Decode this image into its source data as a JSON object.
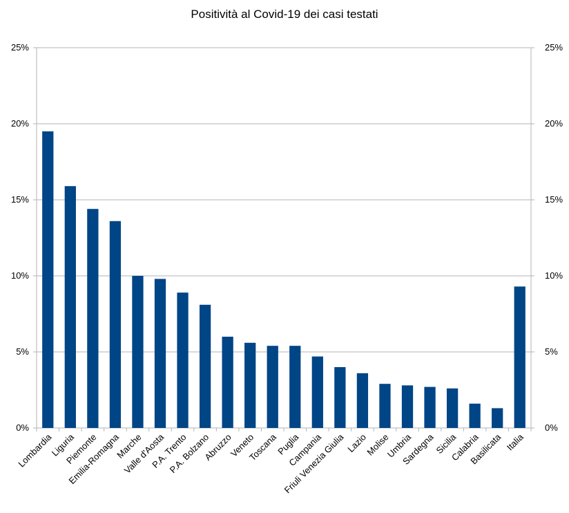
{
  "chart_data": {
    "type": "bar",
    "title": "Positività al Covid-19 dei casi testati",
    "categories": [
      "Lombardia",
      "Liguria",
      "Piemonte",
      "Emilia-Romagna",
      "Marche",
      "Valle d'Aosta",
      "P.A. Trento",
      "P.A. Bolzano",
      "Abruzzo",
      "Veneto",
      "Toscana",
      "Puglia",
      "Campania",
      "Friuli Venezia Giulia",
      "Lazio",
      "Molise",
      "Umbria",
      "Sardegna",
      "Sicilia",
      "Calabria",
      "Basilicata",
      "Italia"
    ],
    "values": [
      19.5,
      15.9,
      14.4,
      13.6,
      10.0,
      9.8,
      8.9,
      8.1,
      6.0,
      5.6,
      5.4,
      5.4,
      4.7,
      4.0,
      3.6,
      2.9,
      2.8,
      2.7,
      2.6,
      1.6,
      1.3,
      9.3
    ],
    "ylim": [
      0,
      25
    ],
    "yticks": [
      "0%",
      "5%",
      "10%",
      "15%",
      "20%",
      "25%"
    ],
    "y_tick_values": [
      0,
      5,
      10,
      15,
      20,
      25
    ],
    "grid": true,
    "secondary_y_axis": true,
    "bar_color": "#004586",
    "xlabel": "",
    "ylabel": ""
  }
}
